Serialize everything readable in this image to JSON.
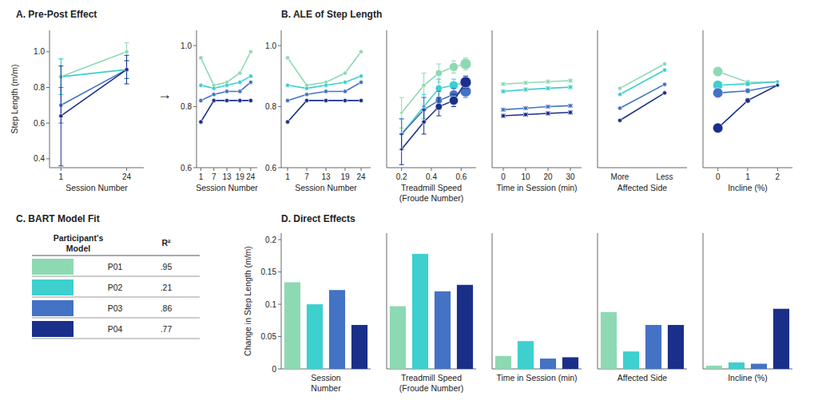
{
  "chart_data": [
    {
      "type": "line",
      "title": "A. Pre-Post Effect",
      "annotation": "→",
      "xlabel": "Session Number",
      "ylabel": "Step Length (m/m)",
      "x": [
        1,
        24
      ],
      "xlim": [
        -3,
        30
      ],
      "xticks": [
        1,
        24
      ],
      "ylim": [
        0.35,
        1.12
      ],
      "yticks": [
        0.4,
        0.6,
        0.8,
        {
          "value": 1.0,
          "label": "1.0"
        }
      ],
      "marker": "circle",
      "series": [
        {
          "color": "#8dd9b3",
          "values": [
            0.86,
            1.0
          ],
          "errors": [
            0.1,
            0.05
          ]
        },
        {
          "color": "#3ecfcf",
          "values": [
            0.86,
            0.9
          ],
          "errors": [
            0.1,
            0.05
          ]
        },
        {
          "color": "#4472c4",
          "values": [
            0.7,
            0.9
          ],
          "errors": [
            0.1,
            0.05
          ]
        },
        {
          "color": "#1a2f8a",
          "values": [
            0.64,
            0.9
          ],
          "errors": [
            0.28,
            0.08
          ]
        }
      ]
    },
    {
      "type": "line",
      "xlabel": "Session Number",
      "x": [
        1,
        7,
        13,
        19,
        24
      ],
      "xlim": [
        -1,
        27
      ],
      "xticks": [
        1,
        7,
        13,
        19,
        24
      ],
      "ylim": [
        0.6,
        1.05
      ],
      "yticks": [
        0.6,
        0.8,
        {
          "value": 1.0,
          "label": "1.0"
        }
      ],
      "marker": "circle",
      "series": [
        {
          "color": "#8dd9b3",
          "values": [
            0.96,
            0.87,
            0.88,
            0.91,
            0.98
          ]
        },
        {
          "color": "#3ecfcf",
          "values": [
            0.87,
            0.86,
            0.87,
            0.88,
            0.9
          ]
        },
        {
          "color": "#4472c4",
          "values": [
            0.82,
            0.84,
            0.85,
            0.85,
            0.88
          ]
        },
        {
          "color": "#1a2f8a",
          "values": [
            0.75,
            0.82,
            0.82,
            0.82,
            0.82
          ]
        }
      ]
    },
    {
      "type": "line",
      "title": "B. ALE of Step Length",
      "xlabel": "Session Number",
      "x": [
        1,
        7,
        13,
        19,
        24
      ],
      "xlim": [
        -1,
        27
      ],
      "xticks": [
        1,
        7,
        13,
        19,
        24
      ],
      "ylim": [
        0.6,
        1.05
      ],
      "yticks": [
        0.6,
        0.8,
        {
          "value": 1.0,
          "label": "1.0"
        }
      ],
      "marker": "circle",
      "series": [
        {
          "color": "#8dd9b3",
          "values": [
            0.96,
            0.87,
            0.88,
            0.91,
            0.98
          ]
        },
        {
          "color": "#3ecfcf",
          "values": [
            0.87,
            0.86,
            0.87,
            0.88,
            0.9
          ]
        },
        {
          "color": "#4472c4",
          "values": [
            0.82,
            0.84,
            0.85,
            0.85,
            0.88
          ]
        },
        {
          "color": "#1a2f8a",
          "values": [
            0.75,
            0.82,
            0.82,
            0.82,
            0.82
          ]
        }
      ]
    },
    {
      "type": "line",
      "xlabel": "Treadmill Speed\n(Froude Number)",
      "x": [
        0.2,
        0.35,
        0.45,
        0.55,
        0.63
      ],
      "xlim": [
        0.1,
        0.7
      ],
      "xticks": [
        0.2,
        0.4,
        0.6
      ],
      "ylim": [
        0.6,
        1.05
      ],
      "tick_labels": "x",
      "marker": "circle",
      "sizes": [
        3,
        5,
        10,
        14,
        18
      ],
      "series": [
        {
          "color": "#8dd9b3",
          "values": [
            0.78,
            0.87,
            0.91,
            0.93,
            0.94
          ],
          "errors": [
            0.05,
            0.04,
            0.03,
            0.02,
            0.02
          ]
        },
        {
          "color": "#3ecfcf",
          "values": [
            0.71,
            0.8,
            0.86,
            0.87,
            0.88
          ],
          "errors": [
            0.05,
            0.04,
            0.03,
            0.02,
            0.02
          ]
        },
        {
          "color": "#4472c4",
          "values": [
            0.71,
            0.79,
            0.82,
            0.84,
            0.85
          ],
          "errors": [
            0.05,
            0.04,
            0.03,
            0.02,
            0.02
          ]
        },
        {
          "color": "#1a2f8a",
          "values": [
            0.66,
            0.75,
            0.8,
            0.82,
            0.88
          ],
          "errors": [
            0.05,
            0.04,
            0.03,
            0.02,
            0.02
          ]
        }
      ]
    },
    {
      "type": "line",
      "xlabel": "Time in Session (min)",
      "x": [
        0,
        10,
        20,
        30
      ],
      "xlim": [
        -5,
        35
      ],
      "xticks": [
        0,
        10,
        20,
        30
      ],
      "ylim": [
        0.6,
        1.05
      ],
      "tick_labels": "x",
      "marker": "circle",
      "series": [
        {
          "color": "#8dd9b3",
          "values": [
            0.874,
            0.878,
            0.882,
            0.885
          ],
          "errors": [
            0.005,
            0.005,
            0.005,
            0.005
          ]
        },
        {
          "color": "#3ecfcf",
          "values": [
            0.85,
            0.856,
            0.86,
            0.864
          ],
          "errors": [
            0.005,
            0.005,
            0.005,
            0.005
          ]
        },
        {
          "color": "#4472c4",
          "values": [
            0.79,
            0.795,
            0.8,
            0.803
          ],
          "errors": [
            0.005,
            0.005,
            0.005,
            0.005
          ]
        },
        {
          "color": "#1a2f8a",
          "values": [
            0.77,
            0.774,
            0.778,
            0.781
          ],
          "errors": [
            0.005,
            0.005,
            0.005,
            0.005
          ]
        }
      ]
    },
    {
      "type": "line",
      "xlabel": "Affected Side",
      "categories": [
        "More",
        "Less"
      ],
      "ylim": [
        0.6,
        1.05
      ],
      "tick_labels": "x",
      "marker": "circle",
      "series": [
        {
          "color": "#8dd9b3",
          "values": [
            0.86,
            0.94
          ]
        },
        {
          "color": "#3ecfcf",
          "values": [
            0.84,
            0.92
          ]
        },
        {
          "color": "#4472c4",
          "values": [
            0.795,
            0.873
          ]
        },
        {
          "color": "#1a2f8a",
          "values": [
            0.755,
            0.845
          ]
        }
      ]
    },
    {
      "type": "line",
      "xlabel": "Incline (%)",
      "x": [
        0,
        1,
        2
      ],
      "xlim": [
        -0.5,
        2.5
      ],
      "xticks": [
        0,
        1,
        2
      ],
      "ylim": [
        0.6,
        1.05
      ],
      "tick_labels": "x",
      "marker": "circle",
      "sizes": [
        16,
        7,
        4
      ],
      "series": [
        {
          "color": "#8dd9b3",
          "values": [
            0.915,
            0.88,
            0.88
          ]
        },
        {
          "color": "#3ecfcf",
          "values": [
            0.87,
            0.875,
            0.882
          ]
        },
        {
          "color": "#4472c4",
          "values": [
            0.845,
            0.852,
            0.87
          ]
        },
        {
          "color": "#1a2f8a",
          "values": [
            0.73,
            0.82,
            0.87
          ]
        }
      ]
    },
    {
      "type": "table",
      "title": "C. BART Model Fit",
      "columns": [
        "Participant's\nModel",
        "R²"
      ],
      "categories": [
        "P01",
        "P02",
        "P03",
        "P04"
      ],
      "values": [
        0.95,
        0.21,
        0.86,
        0.77
      ],
      "value_labels": [
        ".95",
        ".21",
        ".86",
        ".77"
      ],
      "colors": [
        "#8dd9b3",
        "#3ecfcf",
        "#4472c4",
        "#1a2f8a"
      ]
    },
    {
      "type": "bar",
      "title": "D. Direct Effects",
      "xlabel": "Session\nNumber",
      "ylabel": "Change in Step Length (m/m)",
      "categories": [
        null,
        null,
        null,
        null
      ],
      "values": [
        0.134,
        0.1,
        0.122,
        0.068
      ],
      "colors": [
        "#8dd9b3",
        "#3ecfcf",
        "#4472c4",
        "#1a2f8a"
      ],
      "ylim": [
        0,
        0.21
      ],
      "yticks": [
        0,
        0.05,
        0.1,
        0.15,
        0.2
      ],
      "tick_labels": "y"
    },
    {
      "type": "bar",
      "xlabel": "Treadmill Speed\n(Froude Number)",
      "categories": [
        null,
        null,
        null,
        null
      ],
      "values": [
        0.097,
        0.178,
        0.12,
        0.13
      ],
      "colors": [
        "#8dd9b3",
        "#3ecfcf",
        "#4472c4",
        "#1a2f8a"
      ],
      "ylim": [
        0,
        0.21
      ],
      "tick_labels": false
    },
    {
      "type": "bar",
      "xlabel": "Time in Session (min)",
      "categories": [
        null,
        null,
        null,
        null
      ],
      "values": [
        0.02,
        0.043,
        0.016,
        0.018
      ],
      "colors": [
        "#8dd9b3",
        "#3ecfcf",
        "#4472c4",
        "#1a2f8a"
      ],
      "ylim": [
        0,
        0.21
      ],
      "tick_labels": false
    },
    {
      "type": "bar",
      "xlabel": "Affected Side",
      "categories": [
        null,
        null,
        null,
        null
      ],
      "values": [
        0.088,
        0.027,
        0.068,
        0.068
      ],
      "colors": [
        "#8dd9b3",
        "#3ecfcf",
        "#4472c4",
        "#1a2f8a"
      ],
      "ylim": [
        0,
        0.21
      ],
      "tick_labels": false
    },
    {
      "type": "bar",
      "xlabel": "Incline (%)",
      "categories": [
        null,
        null,
        null,
        null
      ],
      "values": [
        0.005,
        0.01,
        0.008,
        0.093
      ],
      "colors": [
        "#8dd9b3",
        "#3ecfcf",
        "#4472c4",
        "#1a2f8a"
      ],
      "ylim": [
        0,
        0.21
      ],
      "tick_labels": false
    }
  ]
}
